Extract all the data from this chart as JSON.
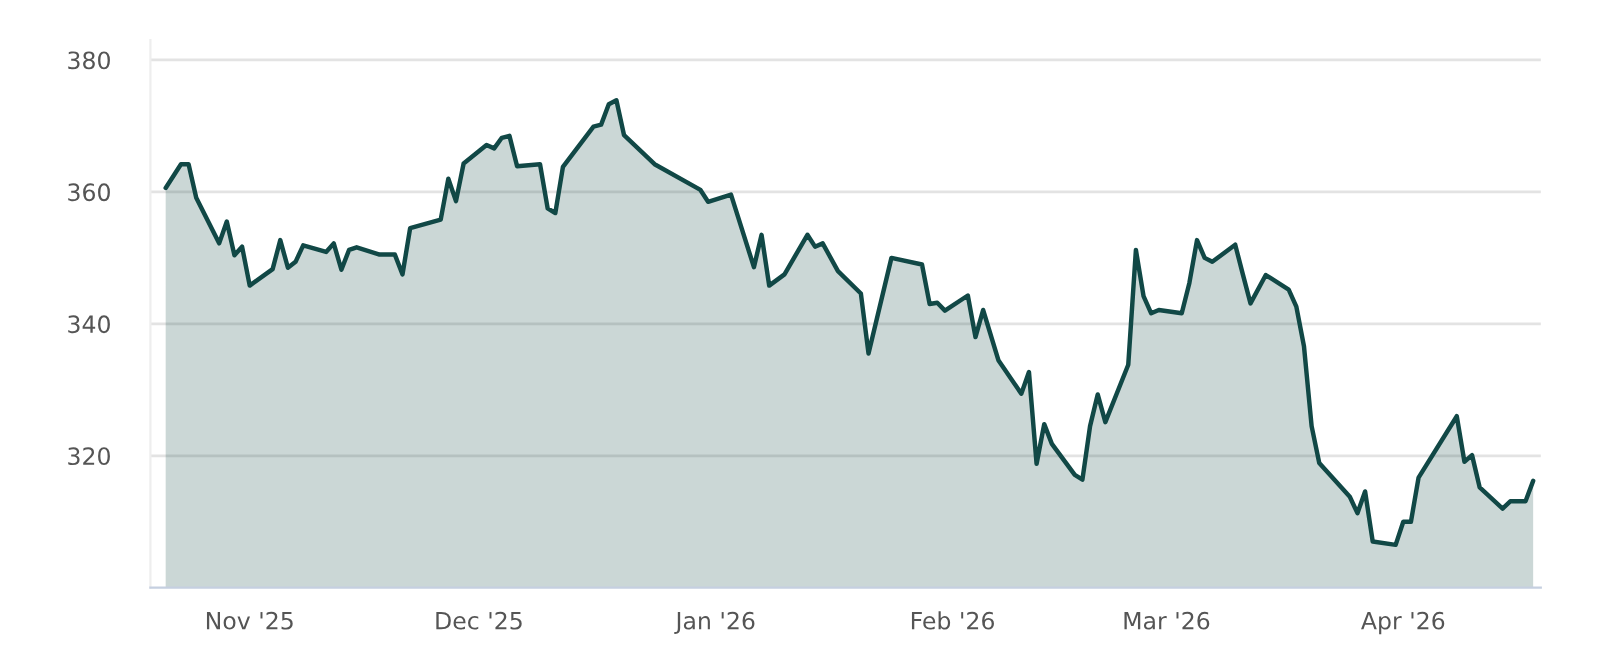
{
  "chart_data": {
    "type": "area",
    "x": [
      "2025-10-21",
      "2025-10-23",
      "2025-10-24",
      "2025-10-25",
      "2025-10-28",
      "2025-10-29",
      "2025-10-30",
      "2025-10-31",
      "2025-11-01",
      "2025-11-04",
      "2025-11-05",
      "2025-11-06",
      "2025-11-07",
      "2025-11-08",
      "2025-11-11",
      "2025-11-12",
      "2025-11-13",
      "2025-11-14",
      "2025-11-15",
      "2025-11-18",
      "2025-11-20",
      "2025-11-21",
      "2025-11-22",
      "2025-11-26",
      "2025-11-27",
      "2025-11-28",
      "2025-11-29",
      "2025-12-02",
      "2025-12-03",
      "2025-12-04",
      "2025-12-05",
      "2025-12-06",
      "2025-12-09",
      "2025-12-10",
      "2025-12-11",
      "2025-12-12",
      "2025-12-16",
      "2025-12-17",
      "2025-12-18",
      "2025-12-19",
      "2025-12-20",
      "2025-12-24",
      "2025-12-30",
      "2025-12-31",
      "2026-01-03",
      "2026-01-06",
      "2026-01-07",
      "2026-01-08",
      "2026-01-10",
      "2026-01-13",
      "2026-01-14",
      "2026-01-15",
      "2026-01-17",
      "2026-01-20",
      "2026-01-21",
      "2026-01-24",
      "2026-01-28",
      "2026-01-29",
      "2026-01-30",
      "2026-01-31",
      "2026-02-03",
      "2026-02-04",
      "2026-02-05",
      "2026-02-07",
      "2026-02-10",
      "2026-02-11",
      "2026-02-12",
      "2026-02-13",
      "2026-02-14",
      "2026-02-17",
      "2026-02-18",
      "2026-02-19",
      "2026-02-20",
      "2026-02-21",
      "2026-02-24",
      "2026-02-25",
      "2026-02-26",
      "2026-02-27",
      "2026-02-28",
      "2026-03-03",
      "2026-03-04",
      "2026-03-05",
      "2026-03-06",
      "2026-03-07",
      "2026-03-10",
      "2026-03-11",
      "2026-03-12",
      "2026-03-14",
      "2026-03-17",
      "2026-03-18",
      "2026-03-19",
      "2026-03-20",
      "2026-03-21",
      "2026-03-25",
      "2026-03-26",
      "2026-03-27",
      "2026-03-28",
      "2026-03-31",
      "2026-04-01",
      "2026-04-02",
      "2026-04-03",
      "2026-04-08",
      "2026-04-09",
      "2026-04-10",
      "2026-04-11",
      "2026-04-14",
      "2026-04-15",
      "2026-04-17",
      "2026-04-18"
    ],
    "series": [
      {
        "color": "#114846",
        "values": [
          360.6,
          364.2,
          364.2,
          359.1,
          352.2,
          355.5,
          350.4,
          351.7,
          345.8,
          348.3,
          352.7,
          348.5,
          349.4,
          351.9,
          350.9,
          352.2,
          348.2,
          351.2,
          351.6,
          350.5,
          350.5,
          347.5,
          354.5,
          355.8,
          362.0,
          358.6,
          364.3,
          367.1,
          366.6,
          368.2,
          368.5,
          363.9,
          364.2,
          357.5,
          356.8,
          363.8,
          369.9,
          370.2,
          373.3,
          373.9,
          368.6,
          364.2,
          360.3,
          358.5,
          359.6,
          348.6,
          353.5,
          345.8,
          347.5,
          353.5,
          351.7,
          352.2,
          348.0,
          344.6,
          335.5,
          350.0,
          349.0,
          343.0,
          343.2,
          342.0,
          344.3,
          338.0,
          342.1,
          334.5,
          329.4,
          332.7,
          318.8,
          324.8,
          321.8,
          317.1,
          316.4,
          324.5,
          329.3,
          325.1,
          333.8,
          351.2,
          344.2,
          341.6,
          342.1,
          341.6,
          346.2,
          352.7,
          350.0,
          349.4,
          352.0,
          347.5,
          343.1,
          347.4,
          345.2,
          342.6,
          336.6,
          324.5,
          318.9,
          313.8,
          311.3,
          314.6,
          307.0,
          306.5,
          310.0,
          310.0,
          316.7,
          326.0,
          319.1,
          320.1,
          315.2,
          312.0,
          313.1,
          313.1,
          316.2
        ]
      }
    ],
    "xlim": [
      "2025-10-19",
      "2026-04-19"
    ],
    "xticks": [
      {
        "value": "2025-11-01",
        "label": "Nov '25"
      },
      {
        "value": "2025-12-01",
        "label": "Dec '25"
      },
      {
        "value": "2026-01-01",
        "label": "Jan '26"
      },
      {
        "value": "2026-02-01",
        "label": "Feb '26"
      },
      {
        "value": "2026-03-01",
        "label": "Mar '26"
      },
      {
        "value": "2026-04-01",
        "label": "Apr '26"
      }
    ],
    "ylim": [
      300,
      383
    ],
    "yticks": [
      320,
      340,
      360,
      380
    ],
    "grid": "y",
    "legend": false,
    "marker": "none",
    "line_style": "solid"
  }
}
